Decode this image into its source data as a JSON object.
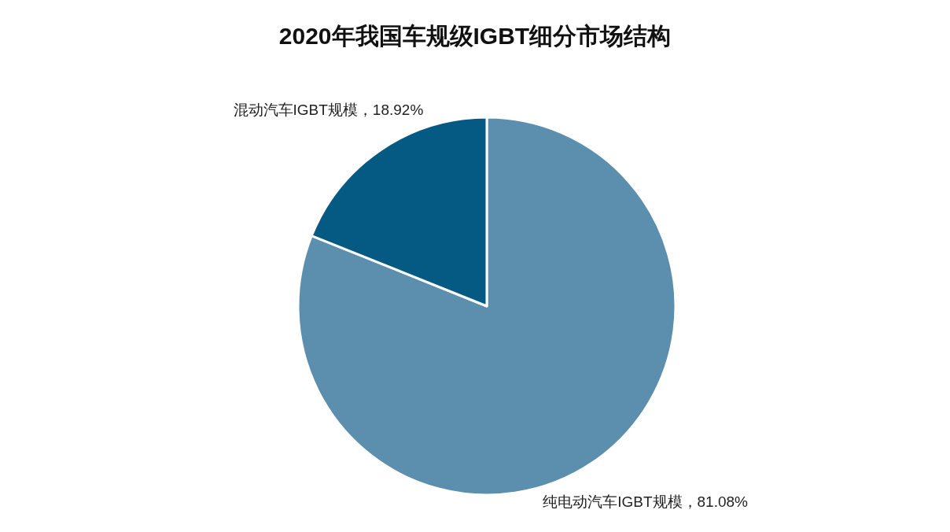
{
  "chart_data": {
    "type": "pie",
    "title": "2020年我国车规级IGBT细分市场结构",
    "categories": [
      "纯电动汽车IGBT规模",
      "混动汽车IGBT规模"
    ],
    "values": [
      81.08,
      18.92
    ],
    "colors": [
      "#5b8fad",
      "#045a82"
    ],
    "value_labels": [
      "81.08%",
      "18.92%"
    ]
  }
}
